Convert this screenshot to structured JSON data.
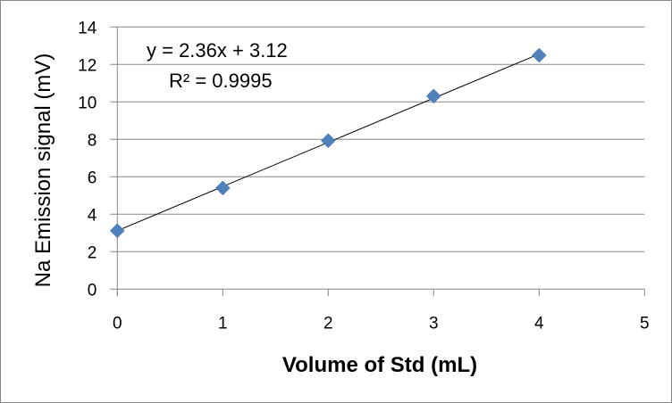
{
  "chart_data": {
    "type": "scatter",
    "title": "",
    "xlabel": "Volume of Std (mL)",
    "ylabel": "Na Emission signal (mV)",
    "xlim": [
      0,
      5
    ],
    "ylim": [
      0,
      14
    ],
    "xticks": [
      "0",
      "1",
      "2",
      "3",
      "4",
      "5"
    ],
    "yticks": [
      "0",
      "2",
      "4",
      "6",
      "8",
      "10",
      "12",
      "14"
    ],
    "grid": "horizontal",
    "legend": "none",
    "series": [
      {
        "x": [
          0,
          1,
          2,
          3,
          4
        ],
        "y": [
          3.12,
          5.4,
          7.93,
          10.31,
          12.49
        ],
        "marker": "diamond",
        "color": "#4F81BD"
      }
    ],
    "trendline": {
      "type": "linear",
      "slope": 2.36,
      "intercept": 3.12,
      "color": "#000000",
      "equation": "y = 2.36x + 3.12",
      "r_squared": "R² = 0.9995"
    }
  }
}
